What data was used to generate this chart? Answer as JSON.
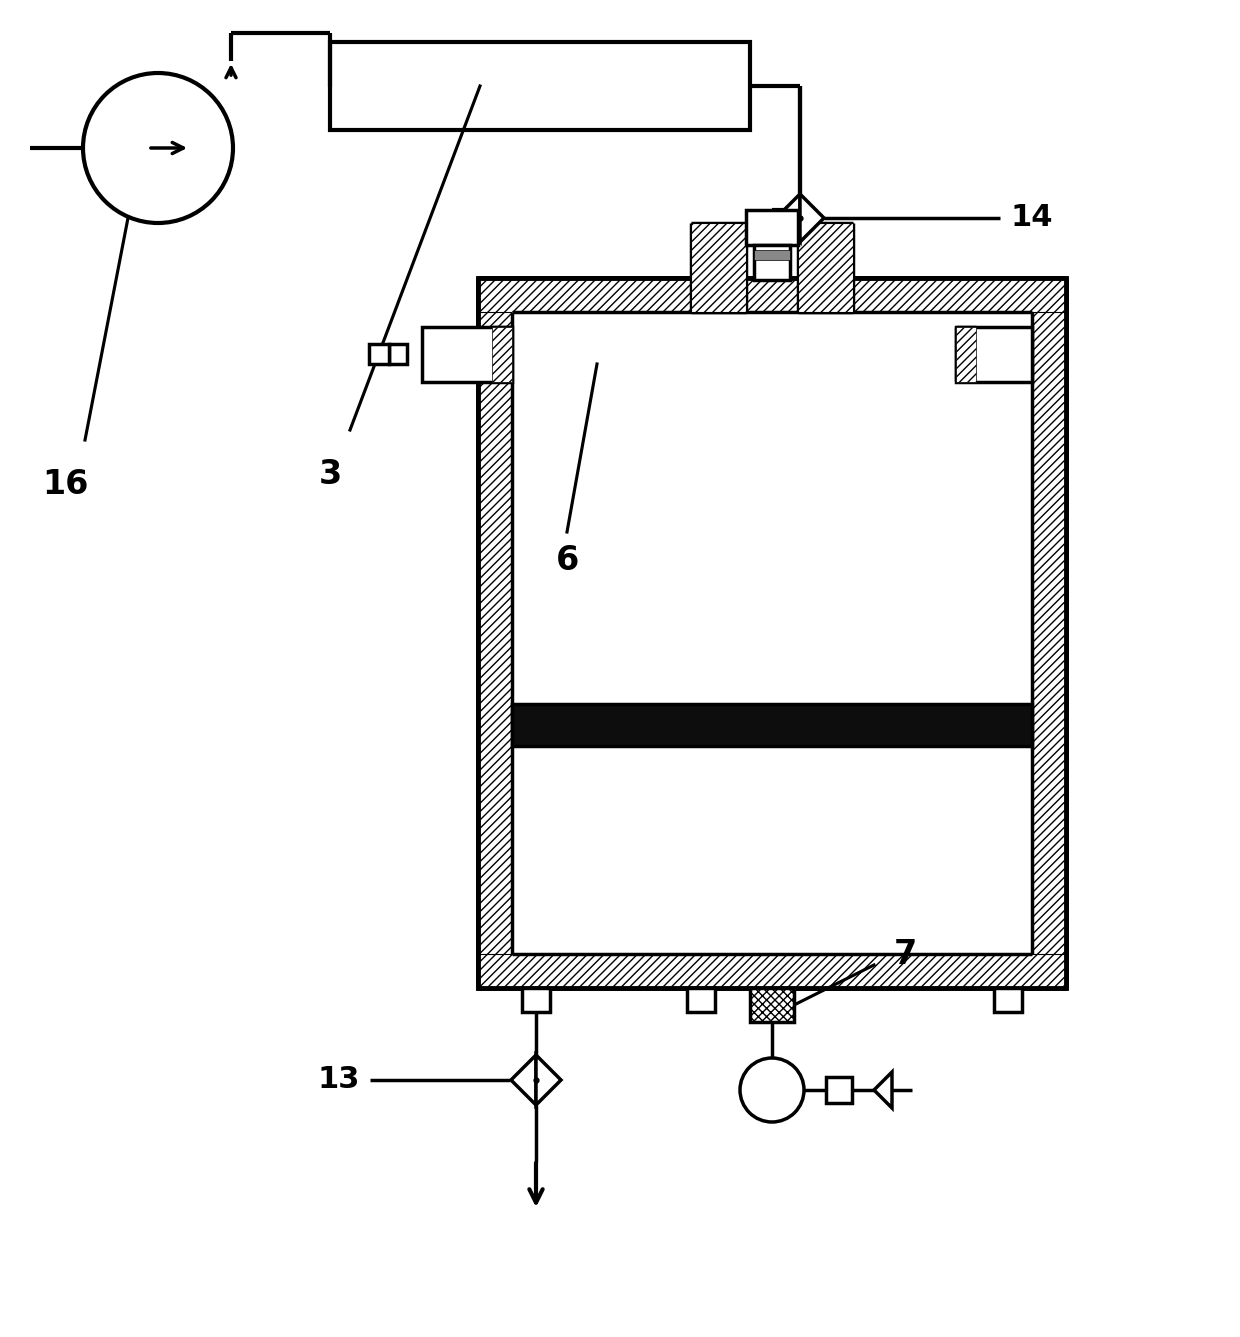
{
  "bg": "#ffffff",
  "lc": "#000000",
  "dark": "#111111",
  "label_16": "16",
  "label_3": "3",
  "label_6": "6",
  "label_7": "7",
  "label_13": "13",
  "label_14": "14",
  "fs": 22,
  "lw": 2.5
}
